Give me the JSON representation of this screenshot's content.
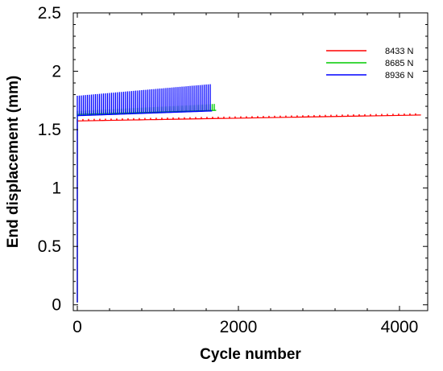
{
  "chart_data": {
    "type": "line",
    "title": "",
    "xlabel": "Cycle number",
    "ylabel": "End displacement (mm)",
    "xlim": [
      -50,
      4350
    ],
    "ylim": [
      -0.05,
      2.5
    ],
    "x_ticks": [
      0,
      2000,
      4000
    ],
    "x_tick_labels": [
      "0",
      "2000",
      "4000"
    ],
    "y_ticks": [
      0,
      0.5,
      1,
      1.5,
      2,
      2.5
    ],
    "y_tick_labels": [
      "0",
      "0.5",
      "1",
      "1.5",
      "2",
      "2.5"
    ],
    "grid": false,
    "legend_position": "top-right",
    "series": [
      {
        "name": "8433 N",
        "color": "#ff0000",
        "start": [
          0,
          0.02
        ],
        "initial_jump_to": 1.58,
        "x_end": 4230,
        "lower_start": 1.575,
        "lower_end": 1.625,
        "upper_start": 1.59,
        "upper_end": 1.64,
        "cycle_spacing": 70
      },
      {
        "name": "8685 N",
        "color": "#00cc00",
        "start": [
          0,
          0.02
        ],
        "initial_jump_to": 1.63,
        "x_end": 1700,
        "lower_start": 1.63,
        "lower_end": 1.665,
        "upper_start": 1.66,
        "upper_end": 1.72,
        "cycle_spacing": 25
      },
      {
        "name": "8936 N",
        "color": "#0000ff",
        "start": [
          0,
          0.02
        ],
        "initial_jump_to": 1.79,
        "x_end": 1660,
        "lower_start": 1.62,
        "lower_end": 1.66,
        "upper_start": 1.79,
        "upper_end": 1.89,
        "cycle_spacing": 25
      }
    ]
  }
}
